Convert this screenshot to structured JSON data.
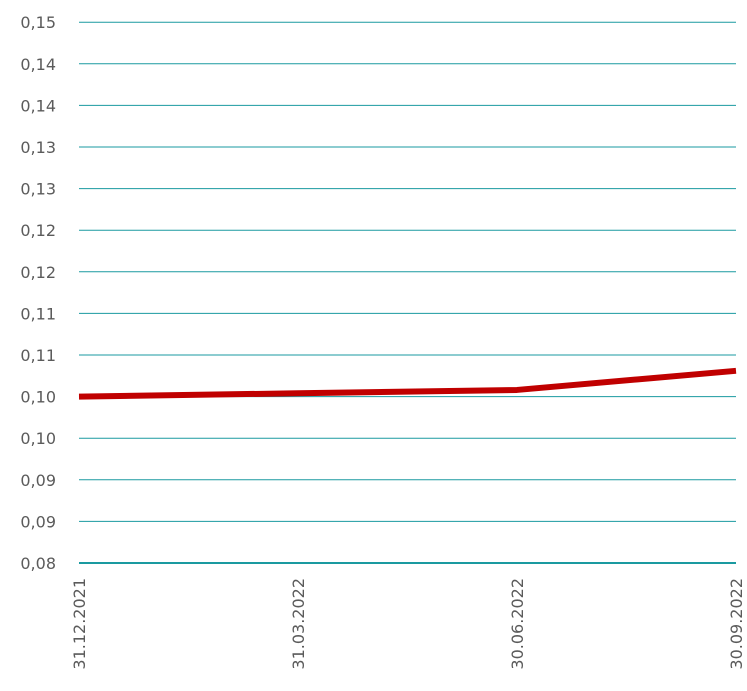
{
  "chart_data": {
    "type": "line",
    "title": "",
    "xlabel": "",
    "ylabel": "",
    "categories": [
      "31.12.2021",
      "31.03.2022",
      "30.06.2022",
      "30.09.2022"
    ],
    "series": [
      {
        "values": [
          0.1,
          0.1004,
          0.1008,
          0.1031
        ],
        "color": "#c00000"
      }
    ],
    "y_tick_values": [
      0.08,
      0.085,
      0.09,
      0.095,
      0.1,
      0.105,
      0.11,
      0.115,
      0.12,
      0.125,
      0.13,
      0.135,
      0.14,
      0.145
    ],
    "y_tick_labels": [
      "0,08",
      "0,09",
      "0,09",
      "0,10",
      "0,10",
      "0,11",
      "0,11",
      "0,12",
      "0,12",
      "0,13",
      "0,13",
      "0,14",
      "0,14",
      "0,15"
    ],
    "ylim": [
      0.08,
      0.145
    ],
    "grid": true,
    "grid_color": "#1a9aa0",
    "text_color": "#5b5b5b",
    "legend": "none"
  }
}
